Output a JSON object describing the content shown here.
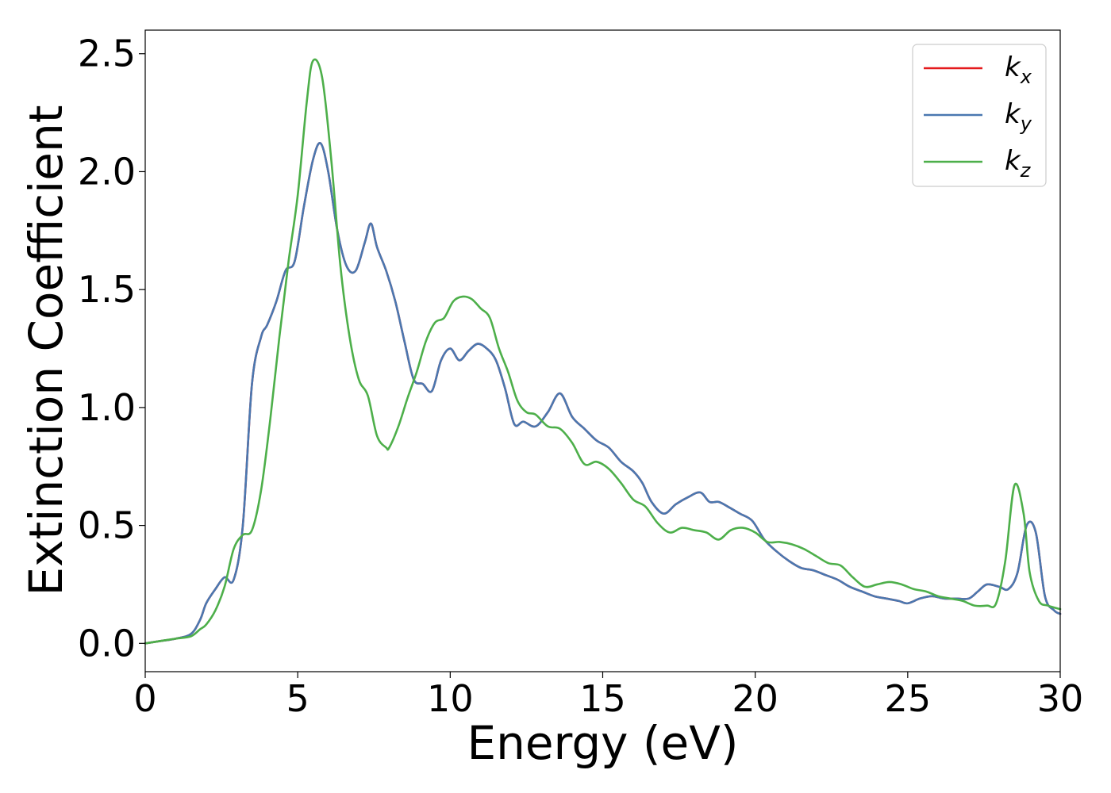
{
  "chart_data": {
    "type": "line",
    "xlabel": "Energy (eV)",
    "ylabel": "Extinction Coefficient",
    "xlim": [
      0,
      30
    ],
    "ylim": [
      -0.12,
      2.6
    ],
    "xticks": [
      0,
      5,
      10,
      15,
      20,
      25,
      30
    ],
    "xtick_labels": [
      "0",
      "5",
      "10",
      "15",
      "20",
      "25",
      "30"
    ],
    "yticks": [
      0.0,
      0.5,
      1.0,
      1.5,
      2.0,
      2.5
    ],
    "ytick_labels": [
      "0.0",
      "0.5",
      "1.0",
      "1.5",
      "2.0",
      "2.5"
    ],
    "grid": false,
    "legend_position": "top-right",
    "series": [
      {
        "name": "k_x",
        "legend_base": "k",
        "legend_sub": "x",
        "color": "#e41a1c",
        "x": [
          0,
          0.5,
          1.0,
          1.5,
          1.8,
          2.0,
          2.3,
          2.6,
          2.9,
          3.2,
          3.5,
          3.8,
          4.0,
          4.3,
          4.6,
          4.9,
          5.2,
          5.5,
          5.75,
          6.0,
          6.3,
          6.6,
          6.9,
          7.2,
          7.4,
          7.6,
          7.9,
          8.2,
          8.5,
          8.8,
          9.1,
          9.4,
          9.7,
          10.0,
          10.3,
          10.6,
          10.9,
          11.2,
          11.5,
          11.8,
          12.1,
          12.4,
          12.8,
          13.2,
          13.6,
          14.0,
          14.4,
          14.8,
          15.2,
          15.6,
          16.0,
          16.3,
          16.6,
          17.0,
          17.4,
          17.8,
          18.2,
          18.5,
          18.8,
          19.1,
          19.5,
          19.9,
          20.3,
          20.7,
          21.1,
          21.5,
          21.9,
          22.3,
          22.7,
          23.1,
          23.5,
          23.9,
          24.3,
          24.7,
          25.0,
          25.4,
          25.8,
          26.2,
          26.6,
          27.0,
          27.3,
          27.6,
          28.0,
          28.3,
          28.6,
          28.9,
          29.2,
          29.5,
          29.8,
          30.0
        ],
        "y": [
          0.0,
          0.01,
          0.02,
          0.04,
          0.1,
          0.17,
          0.23,
          0.28,
          0.27,
          0.5,
          1.1,
          1.3,
          1.35,
          1.45,
          1.58,
          1.62,
          1.85,
          2.05,
          2.12,
          2.0,
          1.75,
          1.6,
          1.58,
          1.7,
          1.78,
          1.68,
          1.58,
          1.45,
          1.28,
          1.12,
          1.1,
          1.07,
          1.2,
          1.25,
          1.2,
          1.24,
          1.27,
          1.25,
          1.2,
          1.08,
          0.93,
          0.94,
          0.92,
          0.98,
          1.06,
          0.96,
          0.91,
          0.86,
          0.83,
          0.77,
          0.73,
          0.68,
          0.6,
          0.55,
          0.59,
          0.62,
          0.64,
          0.6,
          0.6,
          0.58,
          0.55,
          0.52,
          0.44,
          0.39,
          0.35,
          0.32,
          0.31,
          0.29,
          0.27,
          0.24,
          0.22,
          0.2,
          0.19,
          0.18,
          0.17,
          0.19,
          0.2,
          0.19,
          0.19,
          0.19,
          0.22,
          0.25,
          0.24,
          0.23,
          0.3,
          0.5,
          0.47,
          0.2,
          0.14,
          0.125
        ]
      },
      {
        "name": "k_y",
        "legend_base": "k",
        "legend_sub": "y",
        "color": "#4a78b0",
        "x": [
          0,
          0.5,
          1.0,
          1.5,
          1.8,
          2.0,
          2.3,
          2.6,
          2.9,
          3.2,
          3.5,
          3.8,
          4.0,
          4.3,
          4.6,
          4.9,
          5.2,
          5.5,
          5.75,
          6.0,
          6.3,
          6.6,
          6.9,
          7.2,
          7.4,
          7.6,
          7.9,
          8.2,
          8.5,
          8.8,
          9.1,
          9.4,
          9.7,
          10.0,
          10.3,
          10.6,
          10.9,
          11.2,
          11.5,
          11.8,
          12.1,
          12.4,
          12.8,
          13.2,
          13.6,
          14.0,
          14.4,
          14.8,
          15.2,
          15.6,
          16.0,
          16.3,
          16.6,
          17.0,
          17.4,
          17.8,
          18.2,
          18.5,
          18.8,
          19.1,
          19.5,
          19.9,
          20.3,
          20.7,
          21.1,
          21.5,
          21.9,
          22.3,
          22.7,
          23.1,
          23.5,
          23.9,
          24.3,
          24.7,
          25.0,
          25.4,
          25.8,
          26.2,
          26.6,
          27.0,
          27.3,
          27.6,
          28.0,
          28.3,
          28.6,
          28.9,
          29.2,
          29.5,
          29.8,
          30.0
        ],
        "y": [
          0.0,
          0.01,
          0.02,
          0.04,
          0.1,
          0.17,
          0.23,
          0.28,
          0.27,
          0.5,
          1.1,
          1.3,
          1.35,
          1.45,
          1.58,
          1.62,
          1.85,
          2.05,
          2.12,
          2.0,
          1.75,
          1.6,
          1.58,
          1.7,
          1.78,
          1.68,
          1.58,
          1.45,
          1.28,
          1.12,
          1.1,
          1.07,
          1.2,
          1.25,
          1.2,
          1.24,
          1.27,
          1.25,
          1.2,
          1.08,
          0.93,
          0.94,
          0.92,
          0.98,
          1.06,
          0.96,
          0.91,
          0.86,
          0.83,
          0.77,
          0.73,
          0.68,
          0.6,
          0.55,
          0.59,
          0.62,
          0.64,
          0.6,
          0.6,
          0.58,
          0.55,
          0.52,
          0.44,
          0.39,
          0.35,
          0.32,
          0.31,
          0.29,
          0.27,
          0.24,
          0.22,
          0.2,
          0.19,
          0.18,
          0.17,
          0.19,
          0.2,
          0.19,
          0.19,
          0.19,
          0.22,
          0.25,
          0.24,
          0.23,
          0.3,
          0.5,
          0.47,
          0.2,
          0.14,
          0.125
        ]
      },
      {
        "name": "k_z",
        "legend_base": "k",
        "legend_sub": "z",
        "color": "#4daf4a",
        "x": [
          0,
          0.5,
          1.0,
          1.5,
          1.8,
          2.0,
          2.3,
          2.6,
          2.9,
          3.2,
          3.5,
          3.8,
          4.1,
          4.4,
          4.7,
          5.0,
          5.3,
          5.5,
          5.8,
          6.1,
          6.4,
          6.7,
          7.0,
          7.3,
          7.6,
          7.9,
          8.0,
          8.3,
          8.6,
          8.9,
          9.2,
          9.5,
          9.8,
          10.1,
          10.4,
          10.7,
          11.0,
          11.3,
          11.6,
          11.9,
          12.2,
          12.5,
          12.8,
          13.2,
          13.6,
          14.0,
          14.4,
          14.8,
          15.2,
          15.6,
          16.0,
          16.4,
          16.8,
          17.2,
          17.6,
          18.0,
          18.4,
          18.8,
          19.2,
          19.6,
          20.0,
          20.4,
          20.8,
          21.2,
          21.6,
          22.0,
          22.4,
          22.8,
          23.2,
          23.6,
          24.0,
          24.4,
          24.8,
          25.2,
          25.6,
          26.0,
          26.4,
          26.8,
          27.2,
          27.6,
          27.9,
          28.2,
          28.5,
          28.8,
          29.0,
          29.3,
          29.6,
          30.0
        ],
        "y": [
          0.0,
          0.01,
          0.02,
          0.03,
          0.06,
          0.08,
          0.14,
          0.24,
          0.4,
          0.46,
          0.48,
          0.65,
          0.95,
          1.3,
          1.62,
          1.9,
          2.3,
          2.47,
          2.4,
          2.05,
          1.6,
          1.3,
          1.12,
          1.05,
          0.88,
          0.83,
          0.83,
          0.92,
          1.04,
          1.15,
          1.28,
          1.36,
          1.38,
          1.45,
          1.47,
          1.46,
          1.42,
          1.38,
          1.25,
          1.15,
          1.03,
          0.98,
          0.97,
          0.92,
          0.91,
          0.85,
          0.76,
          0.77,
          0.74,
          0.68,
          0.61,
          0.58,
          0.51,
          0.47,
          0.49,
          0.48,
          0.47,
          0.44,
          0.48,
          0.49,
          0.47,
          0.43,
          0.43,
          0.42,
          0.4,
          0.37,
          0.34,
          0.33,
          0.28,
          0.24,
          0.25,
          0.26,
          0.25,
          0.23,
          0.22,
          0.2,
          0.19,
          0.18,
          0.16,
          0.16,
          0.17,
          0.35,
          0.67,
          0.55,
          0.3,
          0.18,
          0.16,
          0.145
        ]
      }
    ]
  }
}
